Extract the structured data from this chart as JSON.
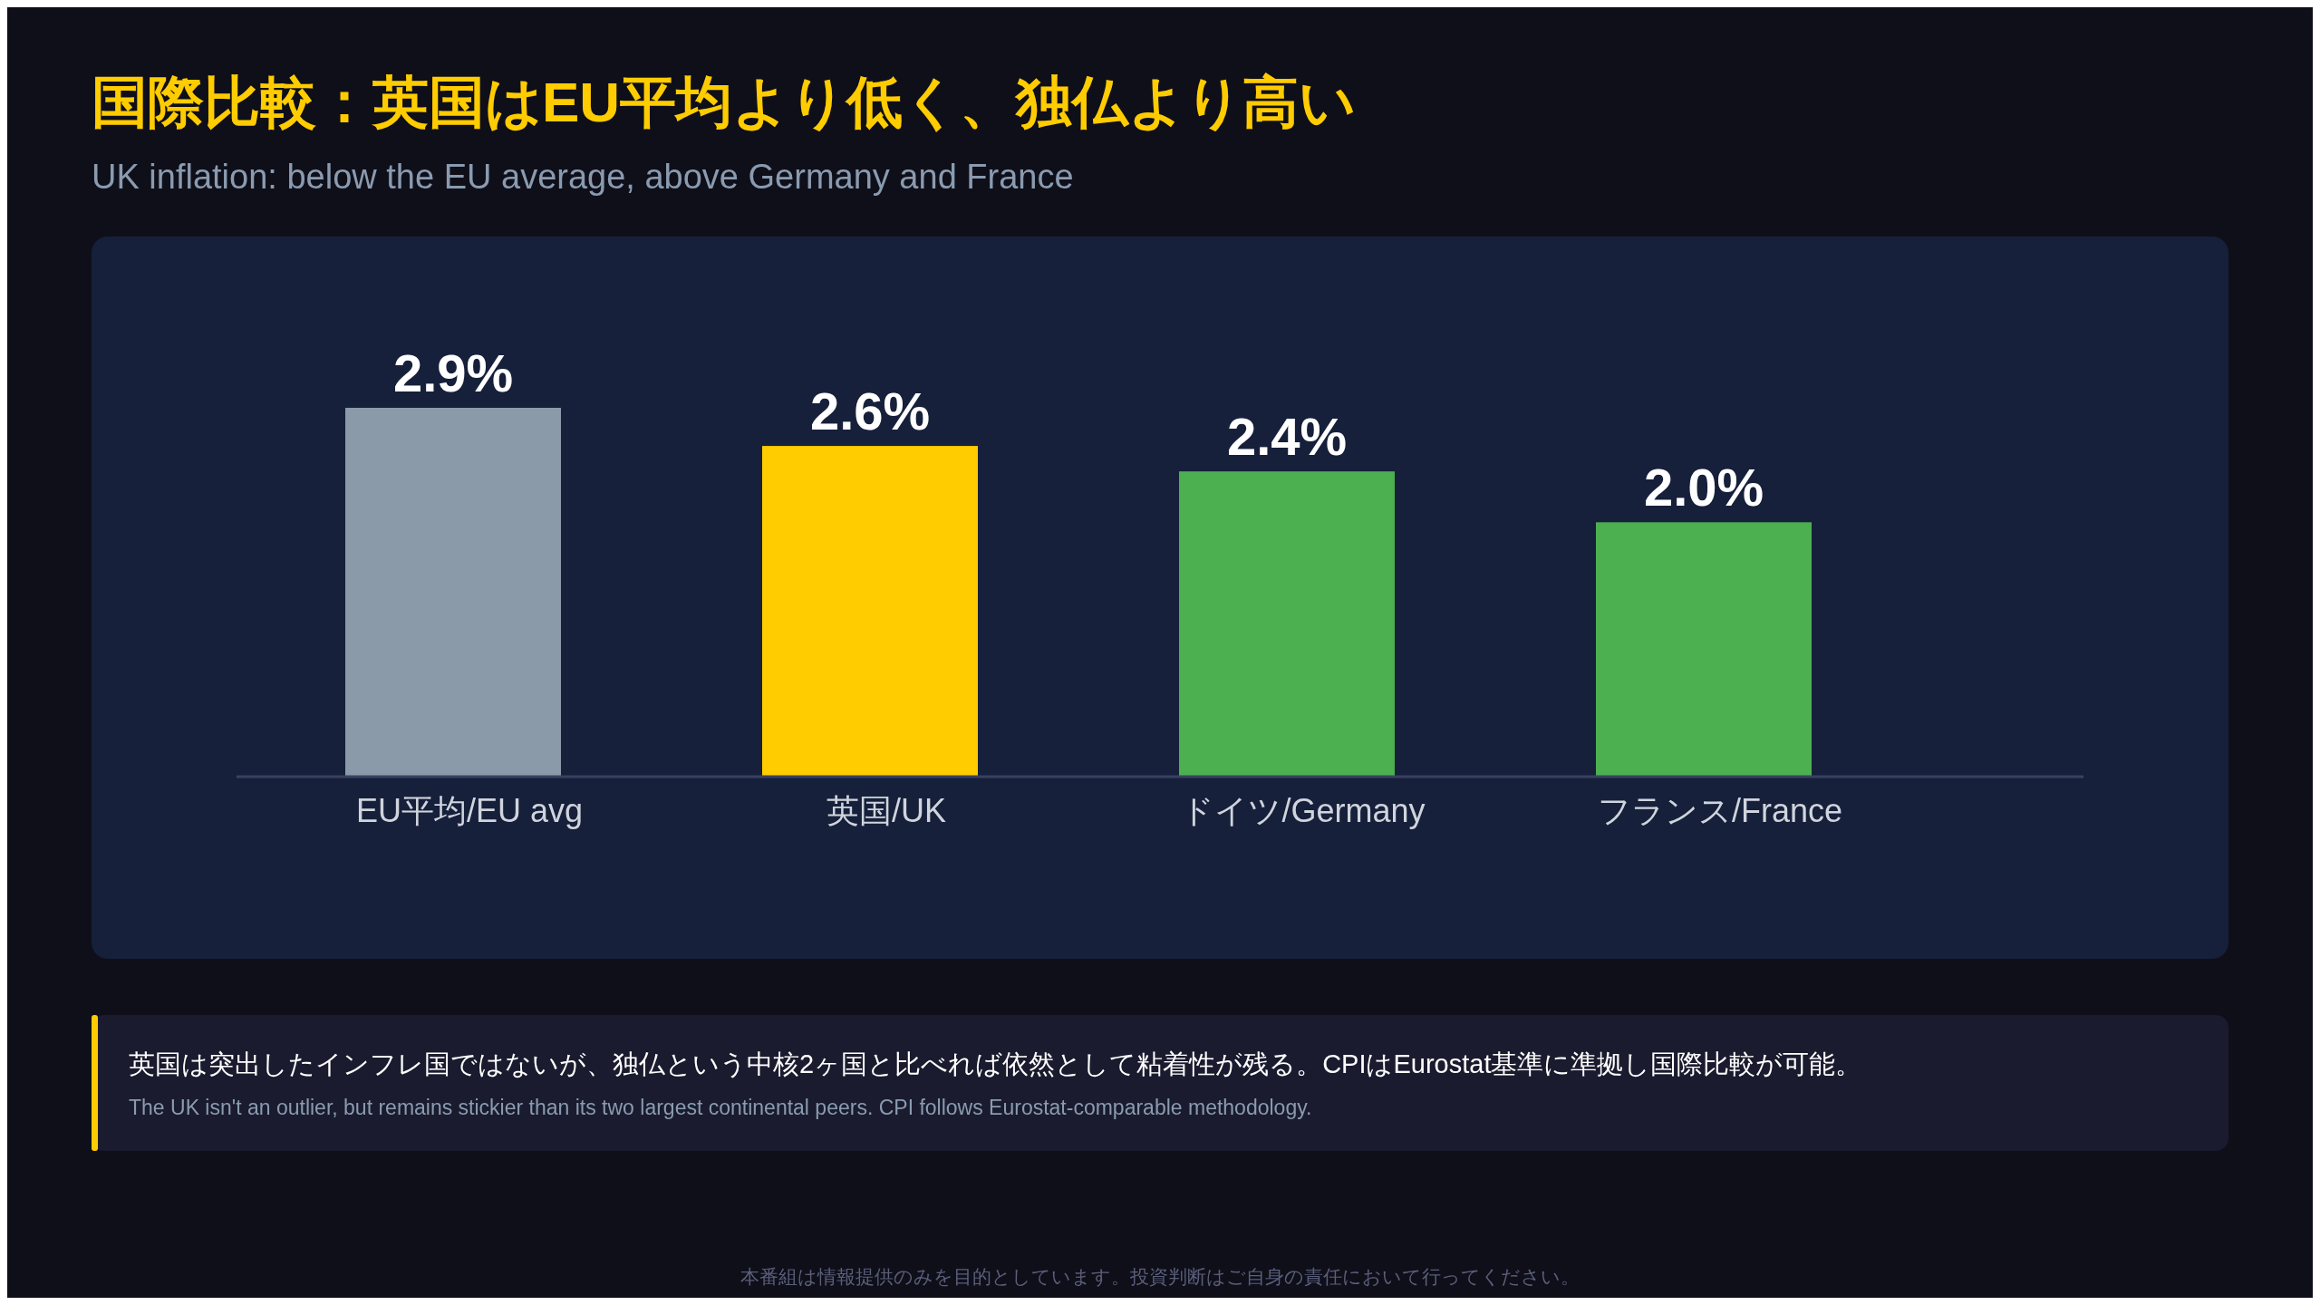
{
  "chart_data": {
    "type": "bar",
    "title": "国際比較：英国はEU平均より低く、独仏より高い",
    "subtitle": "UK inflation: below the EU average, above Germany and France",
    "categories": [
      "EU平均/EU avg",
      "英国/UK",
      "ドイツ/Germany",
      "フランス/France"
    ],
    "values": [
      2.9,
      2.6,
      2.4,
      2.0
    ],
    "colors": [
      "#8a9aa9",
      "#ffcc00",
      "#4caf50",
      "#4caf50"
    ],
    "value_labels": [
      "2.9%",
      "2.6%",
      "2.4%",
      "2.0%"
    ],
    "annotations": [
      "英国は突出したインフレ国ではないが、独仏という中核2ヶ国と比べれば依然として粘着性が残る。CPIはEurostat基準に準拠し国際比較が可能。",
      "The UK isn't an outlier, but remains stickier than its two largest continental peers. CPI follows Eurostat-comparable methodology.",
      "本番組は情報提供のみを目的としています。投資判断はご自身の責任において行ってください。"
    ]
  }
}
